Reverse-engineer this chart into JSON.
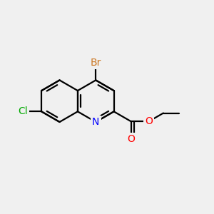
{
  "background_color": "#f0f0f0",
  "bond_color": "#000000",
  "bond_width": 1.6,
  "atom_colors": {
    "Br": "#cc7722",
    "Cl": "#00aa00",
    "N": "#0000ff",
    "O": "#ff0000",
    "C": "#000000"
  }
}
